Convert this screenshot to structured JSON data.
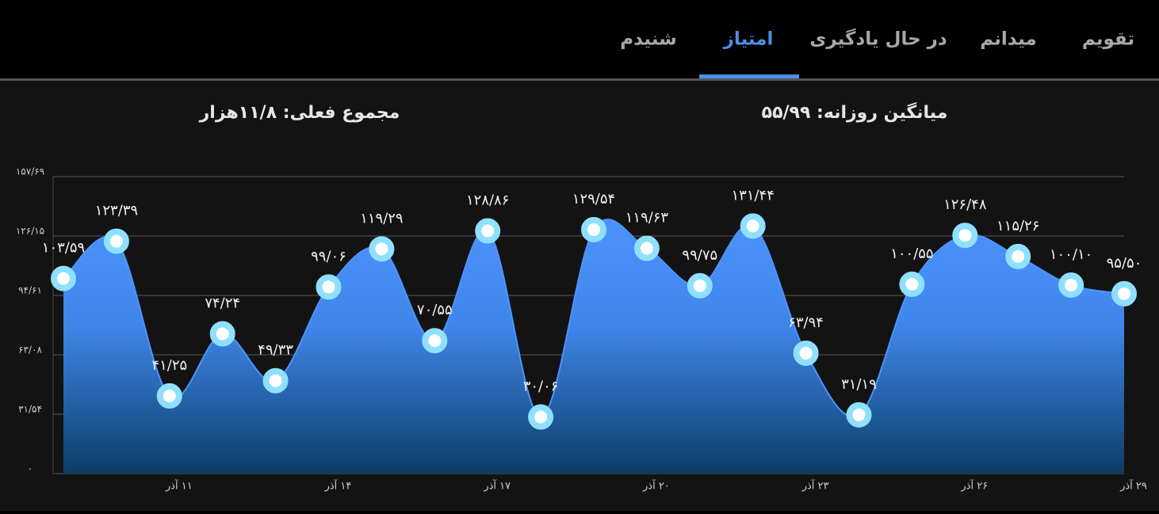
{
  "tabs": [
    "تقویم",
    "میدانم",
    "در حال یادگیری",
    "امتیاز",
    "شنیدم"
  ],
  "active_tab": 3,
  "stats": {
    "daily_average": "میانگین روزانه: ۵۵/۹۹",
    "current_total": "مجموع فعلی: ۱۱/۸هزار"
  },
  "chart_data": {
    "type": "area",
    "categories": [
      null,
      null,
      "۱۱ آذر",
      null,
      null,
      "۱۴ آذر",
      null,
      null,
      "۱۷ آذر",
      null,
      null,
      "۲۰ آذر",
      null,
      null,
      "۲۳ آذر",
      null,
      null,
      "۲۶ آذر",
      null,
      null,
      "۲۹ آذر"
    ],
    "values": [
      103.59,
      123.39,
      41.25,
      74.24,
      49.33,
      99.06,
      119.29,
      70.55,
      128.86,
      30.06,
      129.54,
      119.63,
      99.75,
      131.44,
      63.94,
      31.19,
      100.55,
      126.48,
      115.26,
      100.1,
      95.5
    ],
    "value_labels": [
      "۱۰۳/۵۹",
      "۱۲۳/۳۹",
      "۴۱/۲۵",
      "۷۴/۲۴",
      "۴۹/۳۳",
      "۹۹/۰۶",
      "۱۱۹/۲۹",
      "۷۰/۵۵",
      "۱۲۸/۸۶",
      "۳۰/۰۶",
      "۱۲۹/۵۴",
      "۱۱۹/۶۳",
      "۹۹/۷۵",
      "۱۳۱/۴۴",
      "۶۳/۹۴",
      "۳۱/۱۹",
      "۱۰۰/۵۵",
      "۱۲۶/۴۸",
      "۱۱۵/۲۶",
      "۱۰۰/۱۰",
      "۹۵/۵۰"
    ],
    "color": "#4d94ff",
    "ylim": [
      0,
      157.69
    ],
    "yticks": [
      {
        "value": 0,
        "label": "۰"
      },
      {
        "value": 31.54,
        "label": "۳۱/۵۴"
      },
      {
        "value": 63.08,
        "label": "۶۳/۰۸"
      },
      {
        "value": 94.61,
        "label": "۹۴/۶۱"
      },
      {
        "value": 126.15,
        "label": "۱۲۶/۱۵"
      },
      {
        "value": 157.69,
        "label": "۱۵۷/۶۹"
      }
    ],
    "grid": true
  }
}
